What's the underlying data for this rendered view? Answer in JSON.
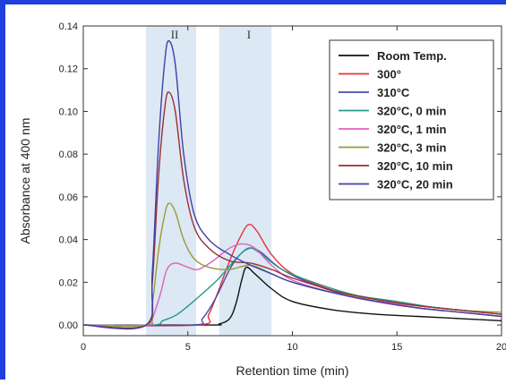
{
  "chart_data": {
    "type": "line",
    "xlabel": "Retention time (min)",
    "ylabel": "Absorbance at 400 nm",
    "xlim": [
      0,
      20
    ],
    "ylim": [
      -0.005,
      0.14
    ],
    "xticks": [
      0,
      5,
      10,
      15,
      20
    ],
    "yticks": [
      0.0,
      0.02,
      0.04,
      0.06,
      0.08,
      0.1,
      0.12,
      0.14
    ],
    "ytick_labels": [
      "0.00",
      "0.02",
      "0.04",
      "0.06",
      "0.08",
      "0.10",
      "0.12",
      "0.14"
    ],
    "grid": false,
    "legend_position": "top-right",
    "shaded_regions": [
      {
        "label": "II",
        "x0": 3.0,
        "x1": 5.4,
        "color": "#dce8f3"
      },
      {
        "label": "I",
        "x0": 6.5,
        "x1": 9.0,
        "color": "#dce8f3"
      }
    ],
    "series": [
      {
        "name": "Room Temp.",
        "color": "#111111",
        "points": [
          [
            0,
            0
          ],
          [
            6.0,
            0
          ],
          [
            6.5,
            0.0005
          ],
          [
            7.0,
            0.003
          ],
          [
            7.3,
            0.01
          ],
          [
            7.6,
            0.022
          ],
          [
            7.8,
            0.027
          ],
          [
            8.2,
            0.024
          ],
          [
            9.0,
            0.017
          ],
          [
            10,
            0.011
          ],
          [
            12,
            0.007
          ],
          [
            14,
            0.005
          ],
          [
            16,
            0.004
          ],
          [
            18,
            0.003
          ],
          [
            20,
            0.002
          ]
        ]
      },
      {
        "name": "300°",
        "color": "#e8333a",
        "points": [
          [
            0,
            0
          ],
          [
            5.5,
            0
          ],
          [
            6.0,
            0.005
          ],
          [
            6.5,
            0.017
          ],
          [
            7.0,
            0.03
          ],
          [
            7.5,
            0.041
          ],
          [
            7.9,
            0.047
          ],
          [
            8.3,
            0.044
          ],
          [
            9.0,
            0.033
          ],
          [
            10,
            0.024
          ],
          [
            12,
            0.016
          ],
          [
            14,
            0.011
          ],
          [
            16,
            0.008
          ],
          [
            18,
            0.006
          ],
          [
            20,
            0.004
          ]
        ]
      },
      {
        "name": "310°C",
        "color": "#4a4ab0",
        "points": [
          [
            0,
            0
          ],
          [
            5.2,
            0
          ],
          [
            5.7,
            0.003
          ],
          [
            6.3,
            0.012
          ],
          [
            7.0,
            0.026
          ],
          [
            7.5,
            0.033
          ],
          [
            8.0,
            0.036
          ],
          [
            8.5,
            0.034
          ],
          [
            9.5,
            0.026
          ],
          [
            11,
            0.019
          ],
          [
            13,
            0.013
          ],
          [
            15,
            0.01
          ],
          [
            17,
            0.008
          ],
          [
            20,
            0.005
          ]
        ]
      },
      {
        "name": "320°C, 0 min",
        "color": "#2a9a8a",
        "points": [
          [
            0,
            0
          ],
          [
            3.3,
            0
          ],
          [
            3.8,
            0.002
          ],
          [
            4.5,
            0.005
          ],
          [
            5.5,
            0.013
          ],
          [
            6.5,
            0.022
          ],
          [
            7.3,
            0.031
          ],
          [
            7.9,
            0.036
          ],
          [
            8.4,
            0.034
          ],
          [
            9.5,
            0.026
          ],
          [
            11,
            0.02
          ],
          [
            13,
            0.014
          ],
          [
            15,
            0.011
          ],
          [
            17,
            0.008
          ],
          [
            20,
            0.005
          ]
        ]
      },
      {
        "name": "320°C, 1 min",
        "color": "#e060c0",
        "points": [
          [
            0,
            0
          ],
          [
            3.0,
            0
          ],
          [
            3.3,
            0.003
          ],
          [
            3.7,
            0.015
          ],
          [
            4.0,
            0.026
          ],
          [
            4.4,
            0.029
          ],
          [
            5.0,
            0.027
          ],
          [
            5.5,
            0.026
          ],
          [
            6.2,
            0.03
          ],
          [
            7.0,
            0.036
          ],
          [
            7.6,
            0.038
          ],
          [
            8.2,
            0.036
          ],
          [
            9.0,
            0.028
          ],
          [
            10,
            0.021
          ],
          [
            12,
            0.015
          ],
          [
            14,
            0.011
          ],
          [
            17,
            0.008
          ],
          [
            20,
            0.005
          ]
        ]
      },
      {
        "name": "320°C, 3 min",
        "color": "#9a9a38",
        "points": [
          [
            0,
            0
          ],
          [
            3.0,
            0
          ],
          [
            3.3,
            0.01
          ],
          [
            3.6,
            0.035
          ],
          [
            3.9,
            0.052
          ],
          [
            4.1,
            0.057
          ],
          [
            4.4,
            0.053
          ],
          [
            4.8,
            0.04
          ],
          [
            5.3,
            0.031
          ],
          [
            6.0,
            0.027
          ],
          [
            7.0,
            0.026
          ],
          [
            8.0,
            0.028
          ],
          [
            9.0,
            0.024
          ],
          [
            10,
            0.02
          ],
          [
            12,
            0.015
          ],
          [
            14,
            0.012
          ],
          [
            16,
            0.009
          ],
          [
            18,
            0.007
          ],
          [
            20,
            0.006
          ]
        ]
      },
      {
        "name": "320°C, 10 min",
        "color": "#9a2e34",
        "points": [
          [
            0,
            0
          ],
          [
            3.0,
            0
          ],
          [
            3.3,
            0.02
          ],
          [
            3.6,
            0.07
          ],
          [
            3.9,
            0.102
          ],
          [
            4.1,
            0.109
          ],
          [
            4.4,
            0.1
          ],
          [
            4.8,
            0.068
          ],
          [
            5.3,
            0.046
          ],
          [
            6.0,
            0.036
          ],
          [
            7.0,
            0.03
          ],
          [
            8.0,
            0.029
          ],
          [
            9.0,
            0.026
          ],
          [
            10,
            0.022
          ],
          [
            12,
            0.016
          ],
          [
            14,
            0.012
          ],
          [
            16,
            0.009
          ],
          [
            18,
            0.007
          ],
          [
            20,
            0.005
          ]
        ]
      },
      {
        "name": "320°C, 20 min",
        "color": "#4040a8",
        "points": [
          [
            0,
            0
          ],
          [
            3.0,
            0
          ],
          [
            3.3,
            0.025
          ],
          [
            3.6,
            0.085
          ],
          [
            3.9,
            0.124
          ],
          [
            4.1,
            0.133
          ],
          [
            4.4,
            0.122
          ],
          [
            4.8,
            0.08
          ],
          [
            5.3,
            0.052
          ],
          [
            6.0,
            0.04
          ],
          [
            7.0,
            0.033
          ],
          [
            8.0,
            0.028
          ],
          [
            9.0,
            0.024
          ],
          [
            10,
            0.02
          ],
          [
            12,
            0.015
          ],
          [
            14,
            0.011
          ],
          [
            16,
            0.008
          ],
          [
            18,
            0.006
          ],
          [
            20,
            0.004
          ]
        ]
      }
    ]
  }
}
